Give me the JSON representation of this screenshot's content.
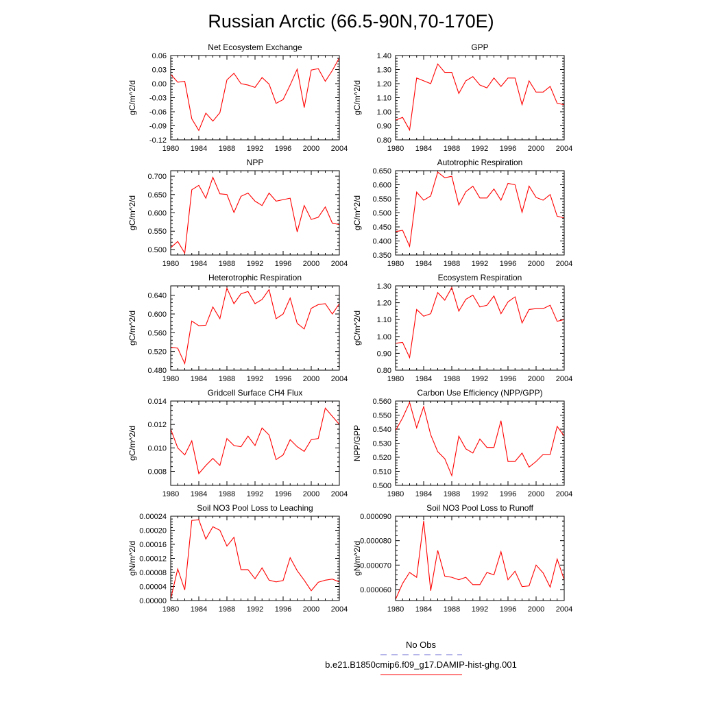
{
  "page_title": "Russian Arctic (66.5-90N,70-170E)",
  "line_color": "#ff0000",
  "obs_color": "#6b6bd6",
  "legend": {
    "obs_label": "No Obs",
    "model_label": "b.e21.B1850cmip6.f09_g17.DAMIP-hist-ghg.001"
  },
  "chart_data": [
    {
      "type": "line",
      "title": "Net Ecosystem Exchange",
      "ylabel": "gC/m^2/d",
      "xlim": [
        1980,
        2004
      ],
      "x_ticks": [
        "1980",
        "1984",
        "1988",
        "1992",
        "1996",
        "2000",
        "2004"
      ],
      "ylim": [
        -0.12,
        0.06
      ],
      "y_ticks": [
        "-0.12",
        "-0.09",
        "-0.06",
        "-0.03",
        "0.00",
        "0.03",
        "0.06"
      ],
      "x": [
        1980,
        1981,
        1982,
        1983,
        1984,
        1985,
        1986,
        1987,
        1988,
        1989,
        1990,
        1991,
        1992,
        1993,
        1994,
        1995,
        1996,
        1997,
        1998,
        1999,
        2000,
        2001,
        2002,
        2003,
        2004
      ],
      "values": [
        0.02,
        0.003,
        0.005,
        -0.075,
        -0.1,
        -0.063,
        -0.08,
        -0.062,
        0.008,
        0.022,
        0.0,
        -0.003,
        -0.008,
        0.013,
        -0.001,
        -0.042,
        -0.034,
        -0.003,
        0.031,
        -0.051,
        0.029,
        0.032,
        0.005,
        0.028,
        0.055
      ]
    },
    {
      "type": "line",
      "title": "GPP",
      "ylabel": "gC/m^2/d",
      "xlim": [
        1980,
        2004
      ],
      "x_ticks": [
        "1980",
        "1984",
        "1988",
        "1992",
        "1996",
        "2000",
        "2004"
      ],
      "ylim": [
        0.8,
        1.4
      ],
      "y_ticks": [
        "0.80",
        "0.90",
        "1.00",
        "1.10",
        "1.20",
        "1.30",
        "1.40"
      ],
      "x": [
        1980,
        1981,
        1982,
        1983,
        1984,
        1985,
        1986,
        1987,
        1988,
        1989,
        1990,
        1991,
        1992,
        1993,
        1994,
        1995,
        1996,
        1997,
        1998,
        1999,
        2000,
        2001,
        2002,
        2003,
        2004
      ],
      "values": [
        0.94,
        0.96,
        0.87,
        1.24,
        1.22,
        1.2,
        1.34,
        1.28,
        1.28,
        1.13,
        1.22,
        1.25,
        1.19,
        1.17,
        1.24,
        1.18,
        1.24,
        1.24,
        1.05,
        1.22,
        1.14,
        1.14,
        1.18,
        1.06,
        1.05
      ]
    },
    {
      "type": "line",
      "title": "NPP",
      "ylabel": "gC/m^2/d",
      "xlim": [
        1980,
        2004
      ],
      "x_ticks": [
        "1980",
        "1984",
        "1988",
        "1992",
        "1996",
        "2000",
        "2004"
      ],
      "ylim": [
        0.485,
        0.715
      ],
      "y_ticks": [
        "0.500",
        "0.550",
        "0.600",
        "0.650",
        "0.700"
      ],
      "x": [
        1980,
        1981,
        1982,
        1983,
        1984,
        1985,
        1986,
        1987,
        1988,
        1989,
        1990,
        1991,
        1992,
        1993,
        1994,
        1995,
        1996,
        1997,
        1998,
        1999,
        2000,
        2001,
        2002,
        2003,
        2004
      ],
      "values": [
        0.505,
        0.522,
        0.49,
        0.663,
        0.675,
        0.64,
        0.697,
        0.652,
        0.65,
        0.601,
        0.645,
        0.654,
        0.632,
        0.62,
        0.654,
        0.632,
        0.636,
        0.64,
        0.548,
        0.62,
        0.582,
        0.588,
        0.616,
        0.572,
        0.568
      ]
    },
    {
      "type": "line",
      "title": "Autotrophic Respiration",
      "ylabel": "gC/m^2/d",
      "xlim": [
        1980,
        2004
      ],
      "x_ticks": [
        "1980",
        "1984",
        "1988",
        "1992",
        "1996",
        "2000",
        "2004"
      ],
      "ylim": [
        0.35,
        0.65
      ],
      "y_ticks": [
        "0.350",
        "0.400",
        "0.450",
        "0.500",
        "0.550",
        "0.600",
        "0.650"
      ],
      "x": [
        1980,
        1981,
        1982,
        1983,
        1984,
        1985,
        1986,
        1987,
        1988,
        1989,
        1990,
        1991,
        1992,
        1993,
        1994,
        1995,
        1996,
        1997,
        1998,
        1999,
        2000,
        2001,
        2002,
        2003,
        2004
      ],
      "values": [
        0.433,
        0.438,
        0.381,
        0.574,
        0.545,
        0.56,
        0.645,
        0.625,
        0.63,
        0.528,
        0.575,
        0.595,
        0.553,
        0.553,
        0.585,
        0.545,
        0.605,
        0.6,
        0.502,
        0.595,
        0.555,
        0.545,
        0.565,
        0.488,
        0.482
      ]
    },
    {
      "type": "line",
      "title": "Heterotrophic Respiration",
      "ylabel": "gC/m^2/d",
      "xlim": [
        1980,
        2004
      ],
      "x_ticks": [
        "1980",
        "1984",
        "1988",
        "1992",
        "1996",
        "2000",
        "2004"
      ],
      "ylim": [
        0.48,
        0.66
      ],
      "y_ticks": [
        "0.480",
        "0.520",
        "0.560",
        "0.600",
        "0.640"
      ],
      "x": [
        1980,
        1981,
        1982,
        1983,
        1984,
        1985,
        1986,
        1987,
        1988,
        1989,
        1990,
        1991,
        1992,
        1993,
        1994,
        1995,
        1996,
        1997,
        1998,
        1999,
        2000,
        2001,
        2002,
        2003,
        2004
      ],
      "values": [
        0.529,
        0.527,
        0.494,
        0.585,
        0.575,
        0.576,
        0.615,
        0.59,
        0.655,
        0.622,
        0.643,
        0.648,
        0.622,
        0.631,
        0.652,
        0.59,
        0.6,
        0.634,
        0.58,
        0.568,
        0.612,
        0.62,
        0.622,
        0.6,
        0.622
      ]
    },
    {
      "type": "line",
      "title": "Ecosystem Respiration",
      "ylabel": "gC/m^2/d",
      "xlim": [
        1980,
        2004
      ],
      "x_ticks": [
        "1980",
        "1984",
        "1988",
        "1992",
        "1996",
        "2000",
        "2004"
      ],
      "ylim": [
        0.8,
        1.3
      ],
      "y_ticks": [
        "0.80",
        "0.90",
        "1.00",
        "1.10",
        "1.20",
        "1.30"
      ],
      "x": [
        1980,
        1981,
        1982,
        1983,
        1984,
        1985,
        1986,
        1987,
        1988,
        1989,
        1990,
        1991,
        1992,
        1993,
        1994,
        1995,
        1996,
        1997,
        1998,
        1999,
        2000,
        2001,
        2002,
        2003,
        2004
      ],
      "values": [
        0.96,
        0.965,
        0.875,
        1.16,
        1.12,
        1.135,
        1.26,
        1.215,
        1.29,
        1.15,
        1.22,
        1.245,
        1.175,
        1.185,
        1.24,
        1.135,
        1.205,
        1.235,
        1.08,
        1.16,
        1.165,
        1.165,
        1.185,
        1.09,
        1.1
      ]
    },
    {
      "type": "line",
      "title": "Gridcell Surface CH4 Flux",
      "ylabel": "gC/m^2/d",
      "xlim": [
        1980,
        2004
      ],
      "x_ticks": [
        "1980",
        "1984",
        "1988",
        "1992",
        "1996",
        "2000",
        "2004"
      ],
      "ylim": [
        0.0068,
        0.014
      ],
      "y_ticks": [
        "0.008",
        "0.010",
        "0.012",
        "0.014"
      ],
      "x": [
        1980,
        1981,
        1982,
        1983,
        1984,
        1985,
        1986,
        1987,
        1988,
        1989,
        1990,
        1991,
        1992,
        1993,
        1994,
        1995,
        1996,
        1997,
        1998,
        1999,
        2000,
        2001,
        2002,
        2003,
        2004
      ],
      "values": [
        0.0116,
        0.01,
        0.0094,
        0.0106,
        0.0078,
        0.0085,
        0.0091,
        0.0085,
        0.0108,
        0.0102,
        0.0101,
        0.011,
        0.0102,
        0.0117,
        0.0111,
        0.009,
        0.0094,
        0.0107,
        0.0101,
        0.0097,
        0.0107,
        0.0108,
        0.0134,
        0.0127,
        0.012
      ]
    },
    {
      "type": "line",
      "title": "Carbon Use Efficiency (NPP/GPP)",
      "ylabel": "NPP/GPP",
      "xlim": [
        1980,
        2004
      ],
      "x_ticks": [
        "1980",
        "1984",
        "1988",
        "1992",
        "1996",
        "2000",
        "2004"
      ],
      "ylim": [
        0.5,
        0.56
      ],
      "y_ticks": [
        "0.500",
        "0.510",
        "0.520",
        "0.530",
        "0.540",
        "0.550",
        "0.560"
      ],
      "x": [
        1980,
        1981,
        1982,
        1983,
        1984,
        1985,
        1986,
        1987,
        1988,
        1989,
        1990,
        1991,
        1992,
        1993,
        1994,
        1995,
        1996,
        1997,
        1998,
        1999,
        2000,
        2001,
        2002,
        2003,
        2004
      ],
      "values": [
        0.539,
        0.548,
        0.559,
        0.541,
        0.556,
        0.536,
        0.524,
        0.519,
        0.507,
        0.535,
        0.526,
        0.523,
        0.533,
        0.527,
        0.527,
        0.546,
        0.517,
        0.517,
        0.523,
        0.513,
        0.517,
        0.522,
        0.522,
        0.542,
        0.535
      ]
    },
    {
      "type": "line",
      "title": "Soil NO3 Pool Loss to Leaching",
      "ylabel": "gN/m^2/d",
      "xlim": [
        1980,
        2004
      ],
      "x_ticks": [
        "1980",
        "1984",
        "1988",
        "1992",
        "1996",
        "2000",
        "2004"
      ],
      "ylim": [
        0.0,
        0.00024
      ],
      "y_ticks": [
        "0.00000",
        "0.00004",
        "0.00008",
        "0.00012",
        "0.00016",
        "0.00020",
        "0.00024"
      ],
      "x": [
        1980,
        1981,
        1982,
        1983,
        1984,
        1985,
        1986,
        1987,
        1988,
        1989,
        1990,
        1991,
        1992,
        1993,
        1994,
        1995,
        1996,
        1997,
        1998,
        1999,
        2000,
        2001,
        2002,
        2003,
        2004
      ],
      "values": [
        5e-06,
        9e-05,
        3e-05,
        0.000228,
        0.00023,
        0.000175,
        0.00021,
        0.0002,
        0.000155,
        0.00018,
        8.8e-05,
        8.8e-05,
        6.2e-05,
        9.3e-05,
        5.8e-05,
        5.3e-05,
        5.7e-05,
        0.000122,
        8.5e-05,
        5.8e-05,
        2.8e-05,
        5.2e-05,
        5.8e-05,
        6.1e-05,
        5.3e-05
      ]
    },
    {
      "type": "line",
      "title": "Soil NO3 Pool Loss to Runoff",
      "ylabel": "gN/m^2/d",
      "xlim": [
        1980,
        2004
      ],
      "x_ticks": [
        "1980",
        "1984",
        "1988",
        "1992",
        "1996",
        "2000",
        "2004"
      ],
      "ylim": [
        5.55e-05,
        9e-05
      ],
      "y_ticks": [
        "0.000060",
        "0.000070",
        "0.000080",
        "0.000090"
      ],
      "x": [
        1980,
        1981,
        1982,
        1983,
        1984,
        1985,
        1986,
        1987,
        1988,
        1989,
        1990,
        1991,
        1992,
        1993,
        1994,
        1995,
        1996,
        1997,
        1998,
        1999,
        2000,
        2001,
        2002,
        2003,
        2004
      ],
      "values": [
        5.6e-05,
        6.25e-05,
        6.7e-05,
        6.5e-05,
        8.8e-05,
        5.95e-05,
        7.6e-05,
        6.55e-05,
        6.5e-05,
        6.4e-05,
        6.5e-05,
        6.2e-05,
        6.2e-05,
        6.7e-05,
        6.6e-05,
        7.55e-05,
        6.4e-05,
        6.75e-05,
        6.12e-05,
        6.15e-05,
        7e-05,
        6.68e-05,
        6.1e-05,
        7.25e-05,
        6.4e-05
      ]
    }
  ]
}
